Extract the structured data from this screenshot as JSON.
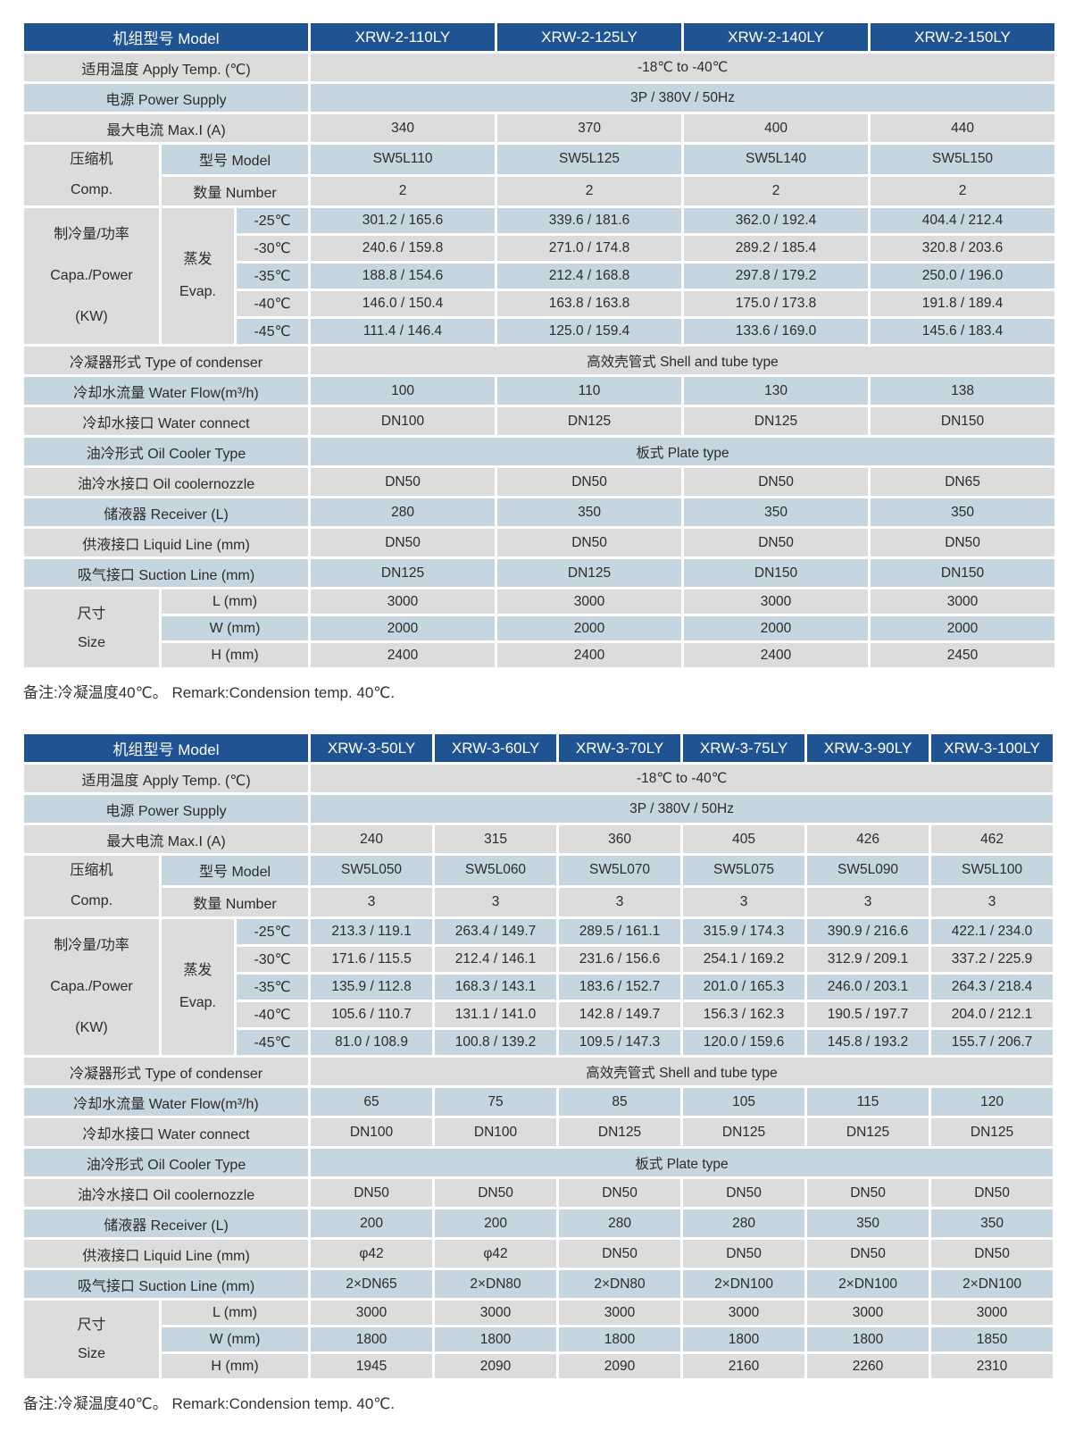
{
  "colors": {
    "header_bg": "#1f5391",
    "stripe_gray": "#dcdcdc",
    "stripe_blue": "#c6d6e0",
    "header_text": "#ffffff",
    "body_text": "#2b2b2b"
  },
  "row_labels": {
    "model": "机组型号 Model",
    "apply_temp": "适用温度 Apply Temp. (℃)",
    "power_supply": "电源 Power Supply",
    "max_current": "最大电流 Max.I (A)",
    "comp_group": [
      "压缩机",
      "Comp."
    ],
    "comp_model": "型号 Model",
    "comp_number": "数量 Number",
    "capacity_group": [
      "制冷量/功率",
      "Capa./Power",
      "(KW)"
    ],
    "evap_group": [
      "蒸发",
      "Evap."
    ],
    "condenser_type": "冷凝器形式 Type of condenser",
    "water_flow": "冷却水流量 Water Flow(m³/h)",
    "water_connect": "冷却水接口 Water connect",
    "oil_cooler_type": "油冷形式 Oil Cooler Type",
    "oil_nozzle": "油冷水接口 Oil coolernozzle",
    "receiver": "储液器 Receiver (L)",
    "liquid_line": "供液接口 Liquid Line (mm)",
    "suction_line": "吸气接口 Suction Line (mm)",
    "size_group": [
      "尺寸",
      "Size"
    ],
    "size_l": "L (mm)",
    "size_w": "W (mm)",
    "size_h": "H (mm)"
  },
  "tables": [
    {
      "models": [
        "XRW-2-110LY",
        "XRW-2-125LY",
        "XRW-2-140LY",
        "XRW-2-150LY"
      ],
      "apply_temp": "-18℃ to -40℃",
      "power_supply": "3P / 380V / 50Hz",
      "max_current": [
        "340",
        "370",
        "400",
        "440"
      ],
      "comp_model": [
        "SW5L110",
        "SW5L125",
        "SW5L140",
        "SW5L150"
      ],
      "comp_number": [
        "2",
        "2",
        "2",
        "2"
      ],
      "capacity_rows": [
        {
          "temp": "-25℃",
          "values": [
            "301.2 / 165.6",
            "339.6 / 181.6",
            "362.0 / 192.4",
            "404.4 / 212.4"
          ]
        },
        {
          "temp": "-30℃",
          "values": [
            "240.6 / 159.8",
            "271.0 / 174.8",
            "289.2 / 185.4",
            "320.8 / 203.6"
          ]
        },
        {
          "temp": "-35℃",
          "values": [
            "188.8 / 154.6",
            "212.4 / 168.8",
            "297.8 / 179.2",
            "250.0 / 196.0"
          ]
        },
        {
          "temp": "-40℃",
          "values": [
            "146.0 / 150.4",
            "163.8 / 163.8",
            "175.0 / 173.8",
            "191.8 / 189.4"
          ]
        },
        {
          "temp": "-45℃",
          "values": [
            "111.4 / 146.4",
            "125.0 / 159.4",
            "133.6 / 169.0",
            "145.6 / 183.4"
          ]
        }
      ],
      "condenser_type": "高效壳管式 Shell and tube type",
      "water_flow": [
        "100",
        "110",
        "130",
        "138"
      ],
      "water_connect": [
        "DN100",
        "DN125",
        "DN125",
        "DN150"
      ],
      "oil_cooler_type": "板式 Plate type",
      "oil_nozzle": [
        "DN50",
        "DN50",
        "DN50",
        "DN65"
      ],
      "receiver": [
        "280",
        "350",
        "350",
        "350"
      ],
      "liquid_line": [
        "DN50",
        "DN50",
        "DN50",
        "DN50"
      ],
      "suction_line": [
        "DN125",
        "DN125",
        "DN150",
        "DN150"
      ],
      "size_l": [
        "3000",
        "3000",
        "3000",
        "3000"
      ],
      "size_w": [
        "2000",
        "2000",
        "2000",
        "2000"
      ],
      "size_h": [
        "2400",
        "2400",
        "2400",
        "2450"
      ],
      "remark": "备注:冷凝温度40℃。 Remark:Condension temp. 40℃."
    },
    {
      "models": [
        "XRW-3-50LY",
        "XRW-3-60LY",
        "XRW-3-70LY",
        "XRW-3-75LY",
        "XRW-3-90LY",
        "XRW-3-100LY"
      ],
      "apply_temp": "-18℃ to -40℃",
      "power_supply": "3P / 380V / 50Hz",
      "max_current": [
        "240",
        "315",
        "360",
        "405",
        "426",
        "462"
      ],
      "comp_model": [
        "SW5L050",
        "SW5L060",
        "SW5L070",
        "SW5L075",
        "SW5L090",
        "SW5L100"
      ],
      "comp_number": [
        "3",
        "3",
        "3",
        "3",
        "3",
        "3"
      ],
      "capacity_rows": [
        {
          "temp": "-25℃",
          "values": [
            "213.3 / 119.1",
            "263.4 / 149.7",
            "289.5 / 161.1",
            "315.9 / 174.3",
            "390.9 / 216.6",
            "422.1 / 234.0"
          ]
        },
        {
          "temp": "-30℃",
          "values": [
            "171.6 / 115.5",
            "212.4 / 146.1",
            "231.6 / 156.6",
            "254.1 / 169.2",
            "312.9 / 209.1",
            "337.2 / 225.9"
          ]
        },
        {
          "temp": "-35℃",
          "values": [
            "135.9 / 112.8",
            "168.3 / 143.1",
            "183.6 / 152.7",
            "201.0 / 165.3",
            "246.0 / 203.1",
            "264.3 / 218.4"
          ]
        },
        {
          "temp": "-40℃",
          "values": [
            "105.6 / 110.7",
            "131.1 / 141.0",
            "142.8 / 149.7",
            "156.3 / 162.3",
            "190.5 / 197.7",
            "204.0 / 212.1"
          ]
        },
        {
          "temp": "-45℃",
          "values": [
            "81.0 / 108.9",
            "100.8 / 139.2",
            "109.5 / 147.3",
            "120.0 / 159.6",
            "145.8 / 193.2",
            "155.7 / 206.7"
          ]
        }
      ],
      "condenser_type": "高效壳管式 Shell and tube type",
      "water_flow": [
        "65",
        "75",
        "85",
        "105",
        "115",
        "120"
      ],
      "water_connect": [
        "DN100",
        "DN100",
        "DN125",
        "DN125",
        "DN125",
        "DN125"
      ],
      "oil_cooler_type": "板式 Plate type",
      "oil_nozzle": [
        "DN50",
        "DN50",
        "DN50",
        "DN50",
        "DN50",
        "DN50"
      ],
      "receiver": [
        "200",
        "200",
        "280",
        "280",
        "350",
        "350"
      ],
      "liquid_line": [
        "φ42",
        "φ42",
        "DN50",
        "DN50",
        "DN50",
        "DN50"
      ],
      "suction_line": [
        "2×DN65",
        "2×DN80",
        "2×DN80",
        "2×DN100",
        "2×DN100",
        "2×DN100"
      ],
      "size_l": [
        "3000",
        "3000",
        "3000",
        "3000",
        "3000",
        "3000"
      ],
      "size_w": [
        "1800",
        "1800",
        "1800",
        "1800",
        "1800",
        "1850"
      ],
      "size_h": [
        "1945",
        "2090",
        "2090",
        "2160",
        "2260",
        "2310"
      ],
      "remark": "备注:冷凝温度40℃。 Remark:Condension temp. 40℃."
    }
  ]
}
